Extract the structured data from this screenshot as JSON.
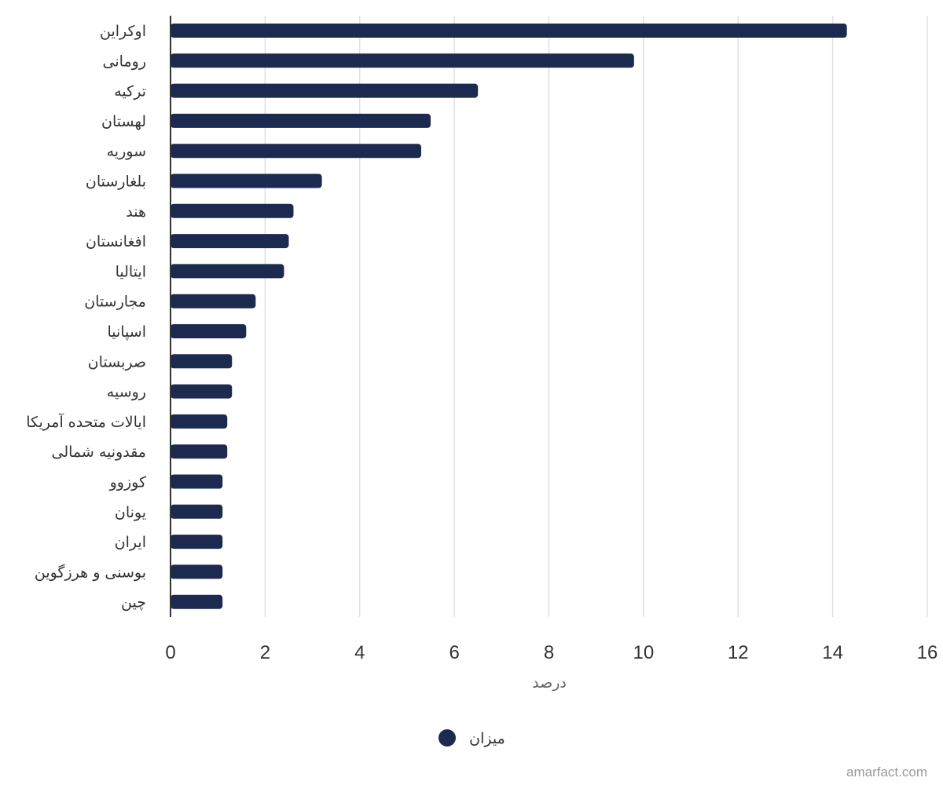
{
  "chart_data": {
    "type": "bar",
    "orientation": "horizontal",
    "categories": [
      "اوکراین",
      "رومانی",
      "ترکیه",
      "لهستان",
      "سوریه",
      "بلغارستان",
      "هند",
      "افغانستان",
      "ایتالیا",
      "مجارستان",
      "اسپانیا",
      "صربستان",
      "روسیه",
      "ایالات متحده آمریکا",
      "مقدونیه شمالی",
      "کوزوو",
      "یونان",
      "ایران",
      "بوسنی و هرزگوین",
      "چین"
    ],
    "series": [
      {
        "name": "میزان",
        "color": "#1b2a4e",
        "values": [
          14.3,
          9.8,
          6.5,
          5.5,
          5.3,
          3.2,
          2.6,
          2.5,
          2.4,
          1.8,
          1.6,
          1.3,
          1.3,
          1.2,
          1.2,
          1.1,
          1.1,
          1.1,
          1.1,
          1.1
        ]
      }
    ],
    "xlabel": "درصد",
    "ylabel": "",
    "xlim": [
      0,
      16
    ],
    "xticks": [
      "0",
      "2",
      "4",
      "6",
      "8",
      "10",
      "12",
      "14",
      "16"
    ],
    "grid": true,
    "legend_position": "bottom-center"
  },
  "credit": "amarfact.com"
}
